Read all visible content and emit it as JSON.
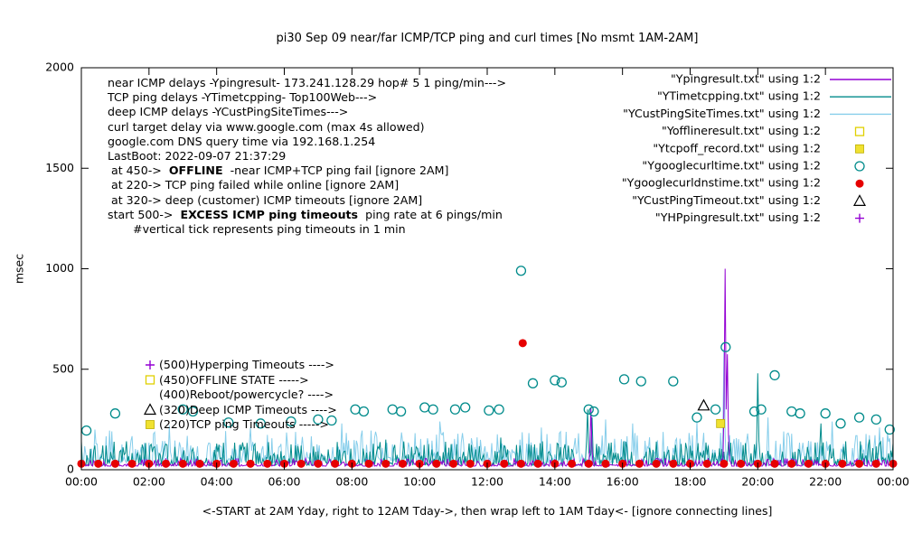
{
  "chart_data": {
    "type": "line",
    "title": "pi30 Sep 09  near/far ICMP/TCP ping and curl times [No msmt 1AM-2AM]",
    "xlabel": "<-START at 2AM Yday, right to 12AM Tday->, then wrap left to 1AM Tday<- [ignore connecting lines]",
    "ylabel": "msec",
    "xlim_hours": [
      0,
      24
    ],
    "ylim": [
      0,
      2000
    ],
    "x_ticks": [
      "00:00",
      "02:00",
      "04:00",
      "06:00",
      "08:00",
      "10:00",
      "12:00",
      "14:00",
      "16:00",
      "18:00",
      "20:00",
      "22:00",
      "00:00"
    ],
    "y_ticks": [
      0,
      500,
      1000,
      1500,
      2000
    ],
    "legend_position": "top-right-inside",
    "grid": false,
    "legend": [
      {
        "label": "\"Ypingresult.txt\" using 1:2",
        "kind": "line",
        "color": "#9400d3"
      },
      {
        "label": "\"YTimetcpping.txt\" using 1:2",
        "kind": "line",
        "color": "#008b8b"
      },
      {
        "label": "\"YCustPingSiteTimes.txt\" using 1:2",
        "kind": "line",
        "color": "#87ceeb"
      },
      {
        "label": "\"Yofflineresult.txt\" using 1:2",
        "kind": "open-square",
        "color": "#e0d000"
      },
      {
        "label": "\"Ytcpoff_record.txt\" using 1:2",
        "kind": "filled-square",
        "color": "#f0e130"
      },
      {
        "label": "\"Ygooglecurltime.txt\" using 1:2",
        "kind": "open-circle",
        "color": "#008b8b"
      },
      {
        "label": "\"Ygooglecurldnstime.txt\" using 1:2",
        "kind": "filled-circle",
        "color": "#e60000"
      },
      {
        "label": "\"YCustPingTimeout.txt\" using 1:2",
        "kind": "open-triangle",
        "color": "#000000"
      },
      {
        "label": "\"YHPpingresult.txt\" using 1:2",
        "kind": "plus",
        "color": "#9400d3"
      }
    ],
    "notes": [
      {
        "pre": " near ICMP delays -Ypingresult- 173.241.128.29 hop# 5 1 ping/min--->",
        "bold": "",
        "post": ""
      },
      {
        "pre": " TCP ping delays -YTimetcpping- Top100Web--->",
        "bold": "",
        "post": ""
      },
      {
        "pre": " deep ICMP delays -YCustPingSiteTimes--->",
        "bold": "",
        "post": ""
      },
      {
        "pre": " curl target delay via www.google.com (max 4s allowed)",
        "bold": "",
        "post": ""
      },
      {
        "pre": " google.com DNS query time via 192.168.1.254",
        "bold": "",
        "post": ""
      },
      {
        "pre": " LastBoot: 2022-09-07 21:37:29",
        "bold": "",
        "post": ""
      },
      {
        "pre": "  at 450->  ",
        "bold": "OFFLINE",
        "post": "  -near ICMP+TCP ping fail [ignore 2AM]"
      },
      {
        "pre": "  at 220-> TCP ping failed while online [ignore 2AM]",
        "bold": "",
        "post": ""
      },
      {
        "pre": "  at 320-> deep (customer) ICMP timeouts [ignore 2AM]",
        "bold": "",
        "post": ""
      },
      {
        "pre": " start 500->  ",
        "bold": "EXCESS ICMP ping timeouts",
        "post": "  ping rate at 6 pings/min"
      },
      {
        "pre": "        #vertical tick represents ping timeouts in 1 min",
        "bold": "",
        "post": ""
      }
    ],
    "threshold_markers": [
      {
        "marker": "plus",
        "color": "#9400d3",
        "label": "(500)Hyperping Timeouts ---->",
        "value": 500
      },
      {
        "marker": "open-square",
        "color": "#e0d000",
        "label": "(450)OFFLINE STATE ----->",
        "value": 450
      },
      {
        "marker": "none",
        "color": "#000000",
        "label": "(400)Reboot/powercycle? ---->",
        "value": 400
      },
      {
        "marker": "open-triangle",
        "color": "#000000",
        "label": "(320)Deep ICMP Timeouts ---->",
        "value": 320
      },
      {
        "marker": "filled-square",
        "color": "#f0e130",
        "label": "(220)TCP ping Timeouts ----->",
        "value": 220
      }
    ],
    "series": {
      "lines": [
        {
          "name": "Ypingresult",
          "color": "#9400d3",
          "base": 18,
          "amp": 40,
          "seed": 42,
          "spikes": [
            [
              15.05,
              310
            ],
            [
              19.03,
              1000
            ],
            [
              19.1,
              575
            ]
          ]
        },
        {
          "name": "YTimetcpping",
          "color": "#008b8b",
          "base": 22,
          "amp": 120,
          "seed": 43,
          "spikes": [
            [
              2.05,
              120
            ],
            [
              4.0,
              130
            ],
            [
              6.5,
              120
            ],
            [
              9.0,
              150
            ],
            [
              12.4,
              160
            ],
            [
              14.95,
              300
            ],
            [
              15.1,
              260
            ],
            [
              17.0,
              140
            ],
            [
              20.0,
              480
            ],
            [
              21.85,
              230
            ],
            [
              23.3,
              150
            ]
          ]
        },
        {
          "name": "YCustPingSiteTimes",
          "color": "#87ceeb",
          "base": 35,
          "amp": 160,
          "seed": 44,
          "spikes": [
            [
              0.4,
              200
            ],
            [
              2.6,
              220
            ],
            [
              5.0,
              210
            ],
            [
              7.7,
              230
            ],
            [
              10.6,
              240
            ],
            [
              13.6,
              210
            ],
            [
              15.5,
              250
            ],
            [
              16.3,
              230
            ],
            [
              18.2,
              240
            ],
            [
              19.0,
              600
            ],
            [
              20.3,
              260
            ],
            [
              22.2,
              240
            ],
            [
              23.6,
              210
            ]
          ]
        }
      ],
      "points": [
        {
          "name": "Ygooglecurltime",
          "marker": "open-circle",
          "color": "#008b8b",
          "data": [
            [
              0.15,
              195
            ],
            [
              1.0,
              280
            ],
            [
              3.0,
              300
            ],
            [
              3.3,
              290
            ],
            [
              4.35,
              235
            ],
            [
              5.3,
              230
            ],
            [
              6.2,
              240
            ],
            [
              7.0,
              250
            ],
            [
              7.4,
              245
            ],
            [
              8.1,
              300
            ],
            [
              8.35,
              290
            ],
            [
              9.2,
              300
            ],
            [
              9.45,
              290
            ],
            [
              10.15,
              310
            ],
            [
              10.4,
              300
            ],
            [
              11.05,
              300
            ],
            [
              11.35,
              310
            ],
            [
              12.05,
              295
            ],
            [
              12.35,
              300
            ],
            [
              13.0,
              990
            ],
            [
              13.35,
              430
            ],
            [
              14.0,
              445
            ],
            [
              14.2,
              435
            ],
            [
              15.0,
              300
            ],
            [
              15.15,
              290
            ],
            [
              16.05,
              450
            ],
            [
              16.55,
              440
            ],
            [
              17.5,
              440
            ],
            [
              18.2,
              260
            ],
            [
              18.75,
              300
            ],
            [
              19.05,
              610
            ],
            [
              19.9,
              290
            ],
            [
              20.1,
              300
            ],
            [
              20.5,
              470
            ],
            [
              21.0,
              290
            ],
            [
              21.25,
              280
            ],
            [
              22.0,
              280
            ],
            [
              22.45,
              230
            ],
            [
              23.0,
              260
            ],
            [
              23.5,
              250
            ],
            [
              23.9,
              200
            ]
          ]
        },
        {
          "name": "Ygooglecurldnstime",
          "marker": "filled-circle",
          "color": "#e60000",
          "data": [
            [
              0,
              30
            ],
            [
              0.5,
              30
            ],
            [
              1,
              30
            ],
            [
              1.5,
              30
            ],
            [
              2,
              30
            ],
            [
              2.5,
              30
            ],
            [
              3,
              30
            ],
            [
              3.5,
              30
            ],
            [
              4,
              30
            ],
            [
              4.5,
              30
            ],
            [
              5,
              30
            ],
            [
              5.5,
              30
            ],
            [
              6,
              30
            ],
            [
              6.5,
              30
            ],
            [
              7,
              30
            ],
            [
              7.5,
              30
            ],
            [
              8,
              30
            ],
            [
              8.5,
              30
            ],
            [
              9,
              30
            ],
            [
              9.5,
              30
            ],
            [
              10,
              30
            ],
            [
              10.5,
              30
            ],
            [
              11,
              30
            ],
            [
              11.5,
              30
            ],
            [
              12,
              30
            ],
            [
              12.5,
              30
            ],
            [
              13,
              30
            ],
            [
              13.05,
              630
            ],
            [
              13.5,
              30
            ],
            [
              14,
              30
            ],
            [
              14.5,
              30
            ],
            [
              15,
              30
            ],
            [
              15.5,
              30
            ],
            [
              16,
              30
            ],
            [
              16.5,
              30
            ],
            [
              17,
              30
            ],
            [
              17.5,
              30
            ],
            [
              18,
              30
            ],
            [
              18.5,
              30
            ],
            [
              19,
              30
            ],
            [
              19.5,
              30
            ],
            [
              20,
              30
            ],
            [
              20.5,
              30
            ],
            [
              21,
              30
            ],
            [
              21.5,
              30
            ],
            [
              22,
              30
            ],
            [
              22.5,
              30
            ],
            [
              23,
              30
            ],
            [
              23.5,
              30
            ],
            [
              24,
              30
            ]
          ]
        },
        {
          "name": "YCustPingTimeout",
          "marker": "open-triangle",
          "color": "#000000",
          "data": [
            [
              18.4,
              320
            ]
          ]
        },
        {
          "name": "Ytcpoff_record",
          "marker": "filled-square",
          "color": "#f0e130",
          "data": [
            [
              18.9,
              230
            ]
          ]
        },
        {
          "name": "Yofflineresult",
          "marker": "open-square",
          "color": "#e0d000",
          "data": []
        },
        {
          "name": "YHPpingresult",
          "marker": "plus",
          "color": "#9400d3",
          "data": []
        }
      ]
    }
  }
}
